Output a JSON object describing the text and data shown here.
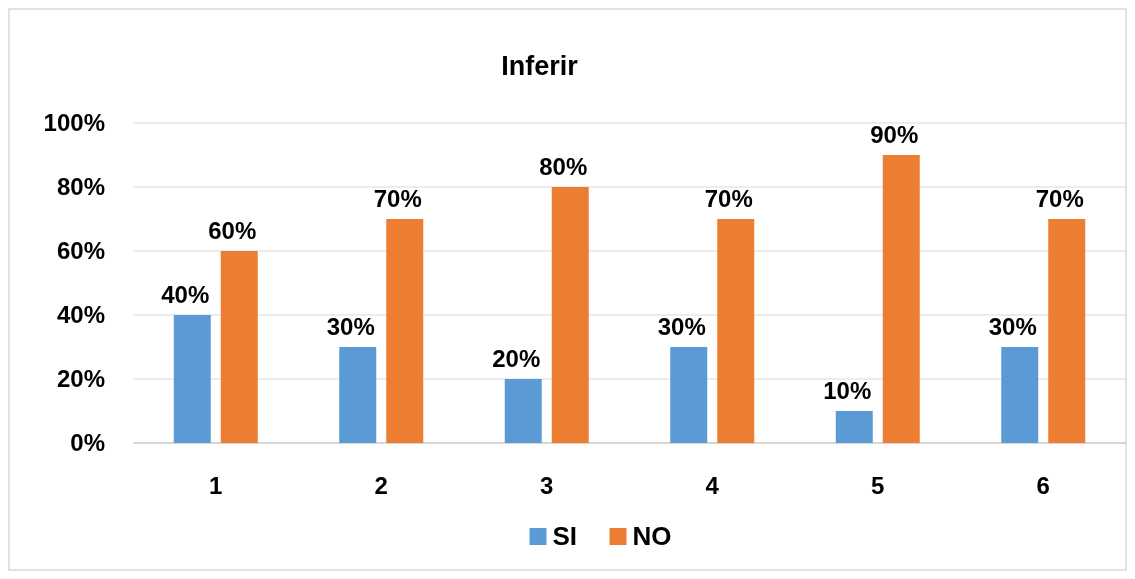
{
  "chart_data": {
    "type": "bar",
    "title": "Inferir",
    "categories": [
      "1",
      "2",
      "3",
      "4",
      "5",
      "6"
    ],
    "series": [
      {
        "name": "SI",
        "color": "#5b9bd5",
        "values": [
          40,
          30,
          20,
          30,
          10,
          30
        ],
        "value_labels": [
          "40%",
          "30%",
          "20%",
          "30%",
          "10%",
          "30%"
        ]
      },
      {
        "name": "NO",
        "color": "#ed7d31",
        "values": [
          60,
          70,
          80,
          70,
          90,
          70
        ],
        "value_labels": [
          "60%",
          "70%",
          "80%",
          "70%",
          "90%",
          "70%"
        ]
      }
    ],
    "ylim": [
      0,
      100
    ],
    "yticks": [
      {
        "value": 0,
        "label": "0%"
      },
      {
        "value": 20,
        "label": "20%"
      },
      {
        "value": 40,
        "label": "40%"
      },
      {
        "value": 60,
        "label": "60%"
      },
      {
        "value": 80,
        "label": "80%"
      },
      {
        "value": 100,
        "label": "100%"
      }
    ],
    "grid": "y",
    "legend": "bottom"
  }
}
